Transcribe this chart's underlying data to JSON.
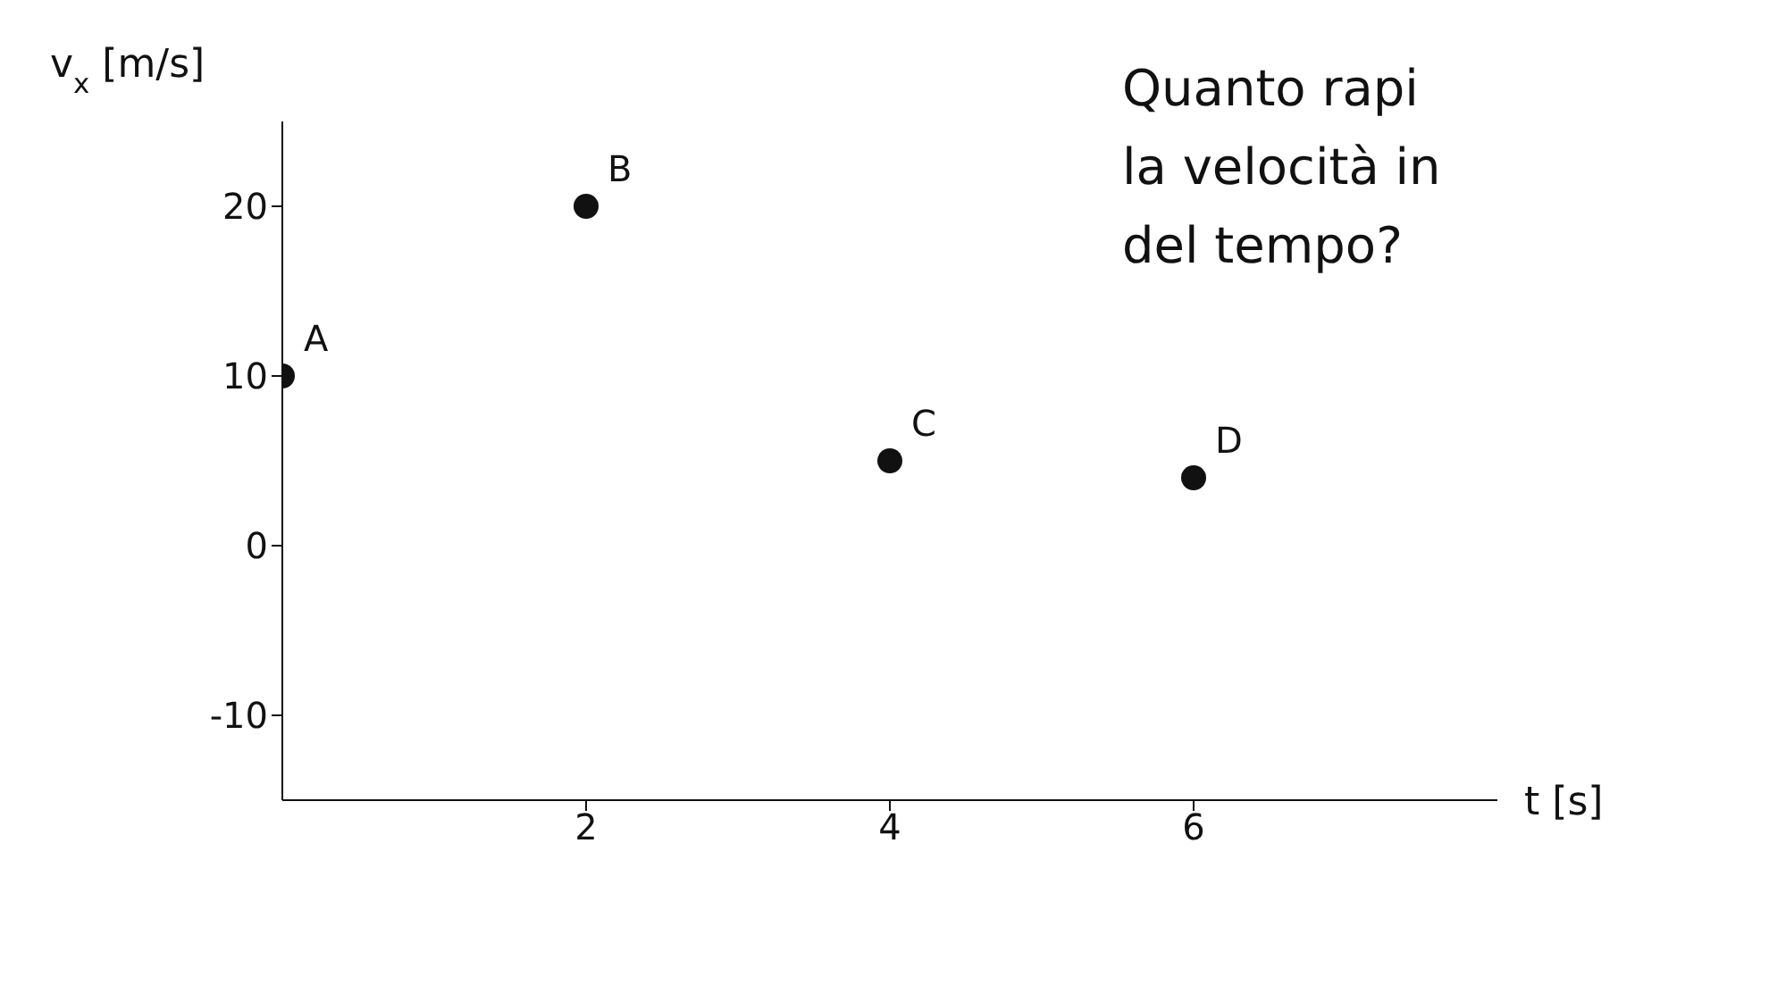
{
  "chart_data": {
    "type": "scatter",
    "xlabel": "t [s]",
    "ylabel": "v$_{x}$ [m/s]",
    "x": [
      0,
      2,
      4,
      6
    ],
    "series": [
      {
        "color": "#111111",
        "values": [
          10,
          20,
          5,
          4
        ]
      }
    ],
    "xlim": [
      0,
      8
    ],
    "ylim": [
      -15,
      25
    ],
    "xticks": [
      2,
      4,
      6
    ],
    "yticks": [
      -10,
      0,
      10,
      20
    ],
    "marker": "circle",
    "grid": false,
    "legend": false,
    "annotations": [
      {
        "text": "A",
        "x": 0,
        "y": 10
      },
      {
        "text": "B",
        "x": 2,
        "y": 20
      },
      {
        "text": "C",
        "x": 4,
        "y": 5
      },
      {
        "text": "D",
        "x": 6,
        "y": 4
      },
      "Quanto rapi\nla velocità in\ndel tempo?"
    ]
  }
}
